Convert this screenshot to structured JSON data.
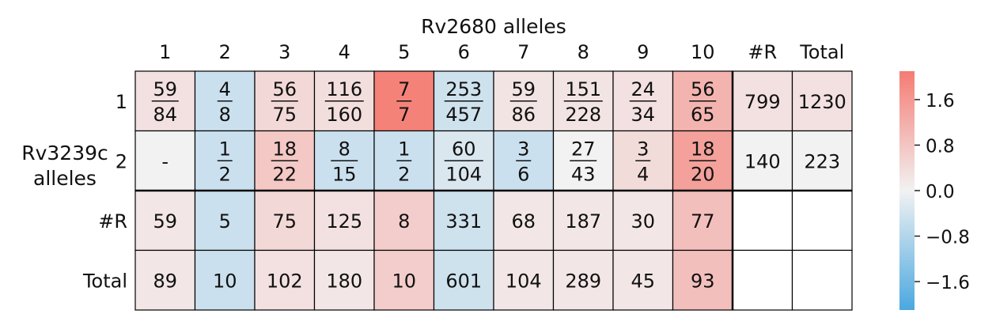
{
  "chart_data": {
    "type": "heatmap",
    "title": "Rv2680 alleles",
    "ylabel": "Rv3239c alleles",
    "col_labels": [
      "1",
      "2",
      "3",
      "4",
      "5",
      "6",
      "7",
      "8",
      "9",
      "10",
      "#R",
      "Total"
    ],
    "row_labels": [
      "1",
      "2",
      "#R",
      "Total"
    ],
    "cells": [
      [
        {
          "num": "59",
          "den": "84",
          "v": 0.3
        },
        {
          "num": "4",
          "den": "8",
          "v": -0.5
        },
        {
          "num": "56",
          "den": "75",
          "v": 0.45
        },
        {
          "num": "116",
          "den": "160",
          "v": 0.35
        },
        {
          "num": "7",
          "den": "7",
          "v": 2.0
        },
        {
          "num": "253",
          "den": "457",
          "v": -0.45
        },
        {
          "num": "59",
          "den": "86",
          "v": 0.25
        },
        {
          "num": "151",
          "den": "228",
          "v": 0.25
        },
        {
          "num": "24",
          "den": "34",
          "v": 0.3
        },
        {
          "num": "56",
          "den": "65",
          "v": 1.1
        },
        {
          "text": "799",
          "v": 0.3
        },
        {
          "text": "1230",
          "v": 0.3
        }
      ],
      [
        {
          "text": "-",
          "v": 0.0
        },
        {
          "num": "1",
          "den": "2",
          "v": -0.5
        },
        {
          "num": "18",
          "den": "22",
          "v": 0.75
        },
        {
          "num": "8",
          "den": "15",
          "v": -0.5
        },
        {
          "num": "1",
          "den": "2",
          "v": -0.5
        },
        {
          "num": "60",
          "den": "104",
          "v": -0.3
        },
        {
          "num": "3",
          "den": "6",
          "v": -0.5
        },
        {
          "num": "27",
          "den": "43",
          "v": 0.0
        },
        {
          "num": "3",
          "den": "4",
          "v": 0.4
        },
        {
          "num": "18",
          "den": "20",
          "v": 1.45
        },
        {
          "text": "140",
          "v": 0.0
        },
        {
          "text": "223",
          "v": 0.0
        }
      ],
      [
        {
          "text": "59",
          "v": 0.2
        },
        {
          "text": "5",
          "v": -0.5
        },
        {
          "text": "75",
          "v": 0.45
        },
        {
          "text": "125",
          "v": 0.3
        },
        {
          "text": "8",
          "v": 0.65
        },
        {
          "text": "331",
          "v": -0.45
        },
        {
          "text": "68",
          "v": 0.2
        },
        {
          "text": "187",
          "v": 0.2
        },
        {
          "text": "30",
          "v": 0.2
        },
        {
          "text": "77",
          "v": 0.9
        },
        {
          "text": "",
          "v": null
        },
        {
          "text": "",
          "v": null
        }
      ],
      [
        {
          "text": "89",
          "v": 0.2
        },
        {
          "text": "10",
          "v": -0.5
        },
        {
          "text": "102",
          "v": 0.3
        },
        {
          "text": "180",
          "v": 0.2
        },
        {
          "text": "10",
          "v": 0.65
        },
        {
          "text": "601",
          "v": -0.45
        },
        {
          "text": "104",
          "v": 0.2
        },
        {
          "text": "289",
          "v": 0.2
        },
        {
          "text": "45",
          "v": 0.2
        },
        {
          "text": "93",
          "v": 0.9
        },
        {
          "text": "",
          "v": null
        },
        {
          "text": "",
          "v": null
        }
      ]
    ],
    "colorbar": {
      "ticks": [
        "1.6",
        "0.8",
        "0.0",
        "−0.8",
        "−1.6"
      ],
      "tick_values": [
        1.6,
        0.8,
        0.0,
        -0.8,
        -1.6
      ],
      "range": [
        -2.1,
        2.1
      ],
      "colors": {
        "negative": "#4aa8e0",
        "mid": "#f2f2f2",
        "positive": "#f47c73"
      }
    }
  }
}
